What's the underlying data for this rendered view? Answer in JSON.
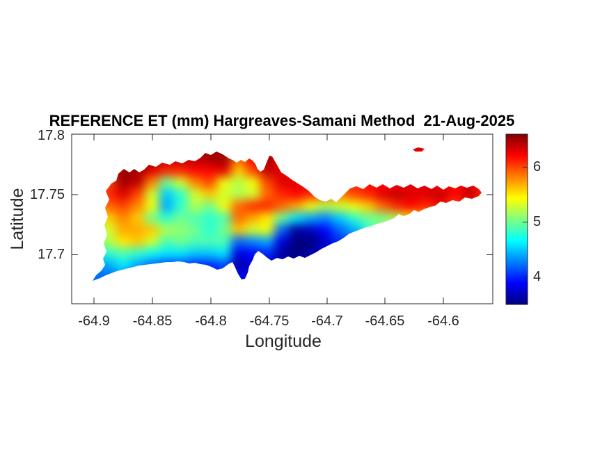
{
  "figure": {
    "title": "REFERENCE ET (mm) Hargreaves-Samani Method  21-Aug-2025",
    "background": "#ffffff",
    "text_color": "#262626"
  },
  "axes": {
    "xlabel": "Longitude",
    "ylabel": "Latitude",
    "x_ticks": [
      "-64.9",
      "-64.85",
      "-64.8",
      "-64.75",
      "-64.7",
      "-64.65",
      "-64.6"
    ],
    "y_ticks": [
      "17.8",
      "17.75",
      "17.7"
    ]
  },
  "colorbar": {
    "ticks": [
      "6",
      "5",
      "4"
    ],
    "colormap": "jet"
  },
  "chart_data": {
    "type": "heatmap",
    "title": "REFERENCE ET (mm) Hargreaves-Samani Method  21-Aug-2025",
    "xlabel": "Longitude",
    "ylabel": "Latitude",
    "x_tick_values": [
      -64.9,
      -64.85,
      -64.8,
      -64.75,
      -64.7,
      -64.65,
      -64.6
    ],
    "y_tick_values": [
      17.8,
      17.75,
      17.7
    ],
    "xlim": [
      -64.92,
      -64.558
    ],
    "ylim": [
      17.659,
      17.8
    ],
    "colormap": "jet",
    "value_label": "Reference ET (mm)",
    "value_range": [
      3.5,
      6.6
    ],
    "colorbar_tick_values": [
      6,
      5,
      4
    ],
    "legend": "none",
    "grid_lines": false,
    "grid": {
      "comment": "Sampled ET values (mm) over the island region, row-major from NW corner; rows = north to south",
      "nx": 28,
      "ny": 12,
      "lon_range": [
        -64.906,
        -64.561
      ],
      "lat_range": [
        17.794,
        17.677
      ],
      "values": [
        [
          6.4,
          6.4,
          6.4,
          6.4,
          6.4,
          6.4,
          6.4,
          6.4,
          6.5,
          6.5,
          6.3,
          6.4,
          6.5,
          6.3,
          6.2,
          6.2,
          6.2,
          6.2,
          6.2,
          6.2,
          6.2,
          6.2,
          6.3,
          6.3,
          6.2,
          6.2,
          6.2,
          6.2
        ],
        [
          6.4,
          6.4,
          6.5,
          6.5,
          6.5,
          6.4,
          6.4,
          6.4,
          6.5,
          6.5,
          5.9,
          6.2,
          6.5,
          6.2,
          6.0,
          6.1,
          6.2,
          6.2,
          6.2,
          6.2,
          6.2,
          6.2,
          6.3,
          6.3,
          6.2,
          6.2,
          6.2,
          6.2
        ],
        [
          6.3,
          6.4,
          6.5,
          6.5,
          6.3,
          6.1,
          6.1,
          6.2,
          6.2,
          6.3,
          5.6,
          6.0,
          6.4,
          6.3,
          6.2,
          6.2,
          6.2,
          6.2,
          6.1,
          6.1,
          6.2,
          6.2,
          6.2,
          6.2,
          6.2,
          6.2,
          6.2,
          6.2
        ],
        [
          5.9,
          6.0,
          6.5,
          6.4,
          5.8,
          5.0,
          5.3,
          5.8,
          6.0,
          5.4,
          5.2,
          5.4,
          6.0,
          6.3,
          6.3,
          6.3,
          6.2,
          6.1,
          6.1,
          6.2,
          6.2,
          6.2,
          6.3,
          6.3,
          6.2,
          6.2,
          6.3,
          6.2
        ],
        [
          5.8,
          6.1,
          6.3,
          6.0,
          5.3,
          4.5,
          4.8,
          5.3,
          5.6,
          5.3,
          5.2,
          5.3,
          5.9,
          6.1,
          6.2,
          6.1,
          5.9,
          5.8,
          6.0,
          6.1,
          6.3,
          6.4,
          6.3,
          6.3,
          6.4,
          6.2,
          6.4,
          6.1
        ],
        [
          5.6,
          5.9,
          6.0,
          5.8,
          5.4,
          4.4,
          4.8,
          5.2,
          5.0,
          5.4,
          5.9,
          6.1,
          6.1,
          5.9,
          5.7,
          5.4,
          5.2,
          5.3,
          5.4,
          5.6,
          5.9,
          6.1,
          6.2,
          6.1,
          6.2,
          6.0,
          6.2,
          6.0
        ],
        [
          5.2,
          5.6,
          5.8,
          5.6,
          5.0,
          4.8,
          5.0,
          4.9,
          4.8,
          4.9,
          5.9,
          5.7,
          5.5,
          5.0,
          4.6,
          4.4,
          4.3,
          4.5,
          4.8,
          5.0,
          5.0,
          5.2,
          5.5,
          5.6,
          5.8,
          5.8,
          5.9,
          5.9
        ],
        [
          5.0,
          5.3,
          5.7,
          5.7,
          5.6,
          5.2,
          5.1,
          5.0,
          4.8,
          5.0,
          5.6,
          5.3,
          5.4,
          4.2,
          3.6,
          3.7,
          3.9,
          4.2,
          4.4,
          4.8,
          5.2,
          5.6,
          5.9,
          5.9,
          6.0,
          5.9,
          6.0,
          6.0
        ],
        [
          5.0,
          5.2,
          5.5,
          5.6,
          5.3,
          4.9,
          5.0,
          4.9,
          4.9,
          4.9,
          4.2,
          4.3,
          4.4,
          3.8,
          3.5,
          3.5,
          3.7,
          4.0,
          4.2,
          4.6,
          5.0,
          5.5,
          5.8,
          5.8,
          5.9,
          5.8,
          5.9,
          5.9
        ],
        [
          4.6,
          4.8,
          4.9,
          4.8,
          4.7,
          4.6,
          4.6,
          4.5,
          4.5,
          4.6,
          3.8,
          3.9,
          4.0,
          3.6,
          3.5,
          3.6,
          3.8,
          4.0,
          4.2,
          4.5,
          4.9,
          5.3,
          5.6,
          5.6,
          5.7,
          5.6,
          5.7,
          5.7
        ],
        [
          4.3,
          4.4,
          4.6,
          4.4,
          4.2,
          4.1,
          4.1,
          4.0,
          4.0,
          4.1,
          3.6,
          3.8,
          3.8,
          3.7,
          3.6,
          3.7,
          3.8,
          4.0,
          4.2,
          4.4,
          4.8,
          5.2,
          5.5,
          5.5,
          5.6,
          5.5,
          5.6,
          5.6
        ],
        [
          4.2,
          4.2,
          4.3,
          4.1,
          4.0,
          4.0,
          4.0,
          3.9,
          3.9,
          4.0,
          3.9,
          3.7,
          3.7,
          3.7,
          3.6,
          3.7,
          3.8,
          4.0,
          4.2,
          4.4,
          4.8,
          5.2,
          5.5,
          5.5,
          5.6,
          5.5,
          5.6,
          5.6
        ]
      ]
    }
  }
}
